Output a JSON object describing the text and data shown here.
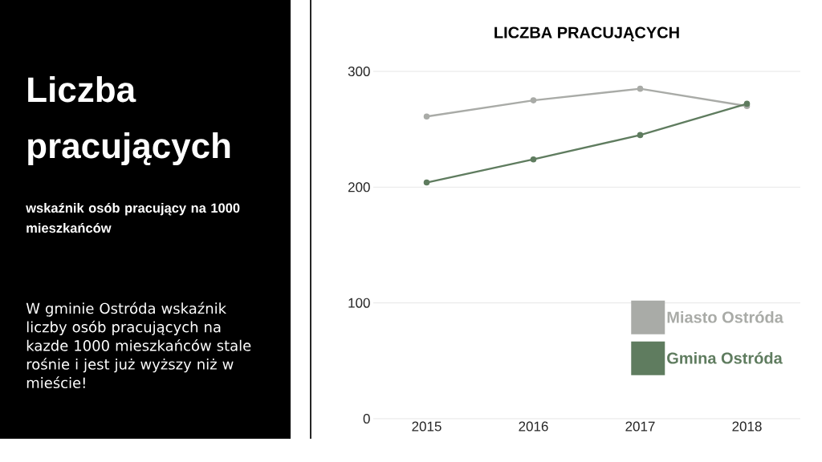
{
  "chart_data": [
    {
      "type": "other",
      "title": "Liczba pracujących",
      "subtitle": "wskaźnik osób pracujący na 1000 mieszkańców",
      "annotations": [
        "W gminie Ostróda wskaźnik liczby osób pracujących na kazde 1000 mieszkańców stale rośnie i jest już wyższy niż w mieście!"
      ]
    },
    {
      "type": "line",
      "title": "LICZBA PRACUJĄCYCH",
      "categories": [
        "2015",
        "2016",
        "2017",
        "2018"
      ],
      "series": [
        {
          "name": "Miasto Ostróda",
          "color": "#a9aba7",
          "values": [
            261,
            275,
            285,
            270
          ]
        },
        {
          "name": "Gmina Ostróda",
          "color": "#5f7c5f",
          "values": [
            204,
            224,
            245,
            272
          ]
        }
      ],
      "ylim": [
        0,
        300
      ],
      "yticks": [
        0,
        100,
        200,
        300
      ],
      "grid": "y",
      "legend": "bottom right",
      "marker": "circle",
      "line_style": "solid"
    }
  ]
}
